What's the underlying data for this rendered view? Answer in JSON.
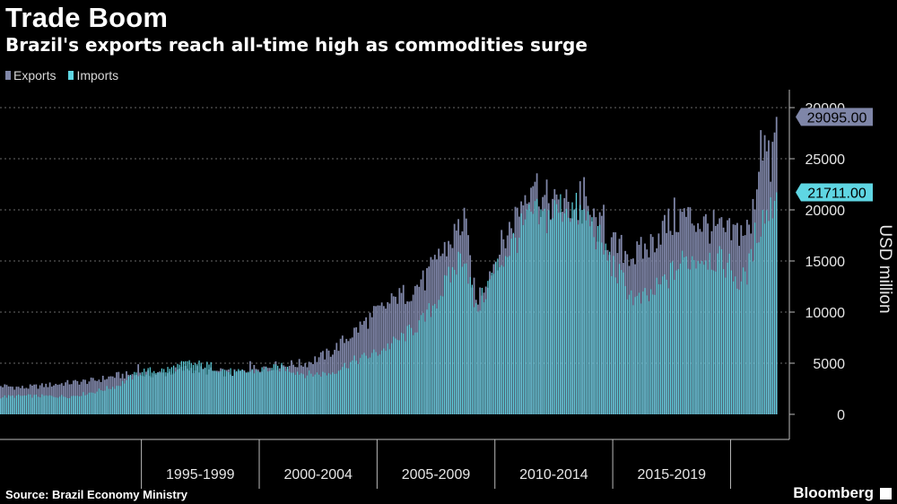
{
  "header": {
    "title": "Trade Boom",
    "subtitle": "Brazil's exports reach all-time high as commodities surge"
  },
  "footer": {
    "source": "Source: Brazil Economy Ministry",
    "brand": "Bloomberg"
  },
  "colors": {
    "exports": "#7f86a8",
    "imports": "#5fd6e3",
    "background": "#000000",
    "grid": "#6a6a6a"
  },
  "chart_data": {
    "type": "bar",
    "ylabel": "USD million",
    "ylim": [
      -2500,
      30000
    ],
    "yticks": [
      0,
      5000,
      10000,
      15000,
      20000,
      25000,
      30000
    ],
    "ytick_labels": [
      "0",
      "5000",
      "10000",
      "15000",
      "20000",
      "25000",
      "30000"
    ],
    "grid": true,
    "legend": "top-left",
    "x_start": "1989-01",
    "x_end": "2021-12",
    "period_labels": [
      {
        "label": "1995-1999",
        "start": 1995,
        "end": 2000
      },
      {
        "label": "2000-2004",
        "start": 2000,
        "end": 2005
      },
      {
        "label": "2005-2009",
        "start": 2005,
        "end": 2010
      },
      {
        "label": "2010-2014",
        "start": 2010,
        "end": 2015
      },
      {
        "label": "2015-2019",
        "start": 2015,
        "end": 2020
      }
    ],
    "series": [
      {
        "name": "Exports",
        "last_value": "29095.00",
        "anchors": [
          [
            1989.0,
            2800
          ],
          [
            1990.0,
            2600
          ],
          [
            1992.0,
            3100
          ],
          [
            1993.0,
            3300
          ],
          [
            1994.0,
            3800
          ],
          [
            1995.0,
            3900
          ],
          [
            1996.0,
            4000
          ],
          [
            1997.0,
            4500
          ],
          [
            1998.0,
            4200
          ],
          [
            1999.0,
            4000
          ],
          [
            2000.0,
            4600
          ],
          [
            2001.0,
            4800
          ],
          [
            2002.0,
            5000
          ],
          [
            2003.0,
            6000
          ],
          [
            2004.0,
            8000
          ],
          [
            2005.0,
            10000
          ],
          [
            2006.0,
            11500
          ],
          [
            2007.0,
            13000
          ],
          [
            2008.0,
            16500
          ],
          [
            2008.7,
            19000
          ],
          [
            2009.2,
            11000
          ],
          [
            2010.0,
            15000
          ],
          [
            2010.7,
            18500
          ],
          [
            2011.0,
            20000
          ],
          [
            2011.6,
            23500
          ],
          [
            2012.0,
            21000
          ],
          [
            2013.0,
            20500
          ],
          [
            2014.0,
            19500
          ],
          [
            2015.0,
            16500
          ],
          [
            2016.0,
            15500
          ],
          [
            2016.6,
            16500
          ],
          [
            2017.0,
            18000
          ],
          [
            2018.0,
            19500
          ],
          [
            2019.0,
            18500
          ],
          [
            2020.0,
            17500
          ],
          [
            2020.4,
            18000
          ],
          [
            2020.9,
            18000
          ],
          [
            2021.0,
            21000
          ],
          [
            2021.4,
            27000
          ],
          [
            2021.7,
            24000
          ],
          [
            2021.95,
            28000
          ]
        ],
        "peaks": [
          [
            1994.9,
            4900
          ],
          [
            1999.6,
            5200
          ],
          [
            2004.8,
            9500
          ],
          [
            2005.8,
            11500
          ],
          [
            2006.9,
            13200
          ],
          [
            2007.6,
            16200
          ],
          [
            2008.5,
            19500
          ],
          [
            2008.7,
            20200
          ],
          [
            2011.0,
            22800
          ],
          [
            2011.5,
            26000
          ],
          [
            2012.6,
            21500
          ],
          [
            2013.6,
            22800
          ],
          [
            2013.8,
            23200
          ],
          [
            2014.6,
            20500
          ],
          [
            2017.0,
            20500
          ],
          [
            2017.6,
            21200
          ],
          [
            2018.5,
            20200
          ],
          [
            2019.5,
            20200
          ],
          [
            2021.3,
            27800
          ],
          [
            2021.5,
            28000
          ],
          [
            2021.6,
            26800
          ],
          [
            2021.92,
            29095
          ]
        ]
      },
      {
        "name": "Imports",
        "last_value": "21711.00",
        "anchors": [
          [
            1989.0,
            1700
          ],
          [
            1990.0,
            1800
          ],
          [
            1992.0,
            1750
          ],
          [
            1993.0,
            2200
          ],
          [
            1994.0,
            2800
          ],
          [
            1995.0,
            4200
          ],
          [
            1996.0,
            4300
          ],
          [
            1997.0,
            5000
          ],
          [
            1998.0,
            4700
          ],
          [
            1999.0,
            4000
          ],
          [
            2000.0,
            4300
          ],
          [
            2001.0,
            4600
          ],
          [
            2002.0,
            3900
          ],
          [
            2003.0,
            4000
          ],
          [
            2004.0,
            5200
          ],
          [
            2005.0,
            6000
          ],
          [
            2006.0,
            7400
          ],
          [
            2007.0,
            9200
          ],
          [
            2008.0,
            13000
          ],
          [
            2008.7,
            16000
          ],
          [
            2009.2,
            10000
          ],
          [
            2010.0,
            14000
          ],
          [
            2010.7,
            16500
          ],
          [
            2011.0,
            17500
          ],
          [
            2011.6,
            19500
          ],
          [
            2012.0,
            19000
          ],
          [
            2013.0,
            20500
          ],
          [
            2014.0,
            19000
          ],
          [
            2015.0,
            14500
          ],
          [
            2016.0,
            11000
          ],
          [
            2016.6,
            11500
          ],
          [
            2017.0,
            12500
          ],
          [
            2018.0,
            15000
          ],
          [
            2019.0,
            15500
          ],
          [
            2020.0,
            14500
          ],
          [
            2020.4,
            12500
          ],
          [
            2020.9,
            15000
          ],
          [
            2021.0,
            17000
          ],
          [
            2021.4,
            19500
          ],
          [
            2021.7,
            20000
          ],
          [
            2021.95,
            21700
          ]
        ],
        "peaks": [
          [
            2021.92,
            21711
          ]
        ]
      }
    ]
  }
}
